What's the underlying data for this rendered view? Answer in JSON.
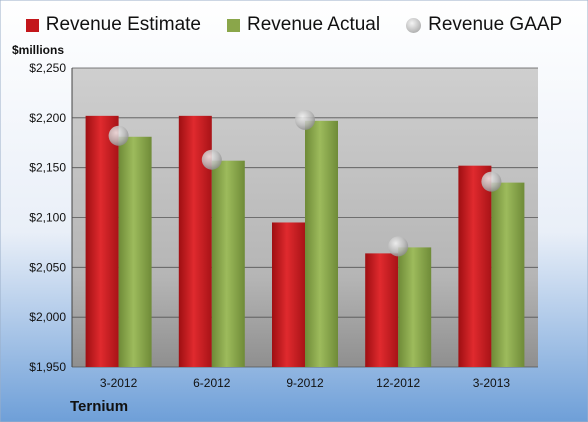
{
  "legend": {
    "estimate": "Revenue Estimate",
    "actual": "Revenue Actual",
    "gaap": "Revenue GAAP"
  },
  "unit_label": "$millions",
  "company": "Ternium",
  "colors": {
    "estimate": "#c3161b",
    "actual": "#8aa64a",
    "gaap": "#b8b8b8",
    "background_top": "#ffffff",
    "background_bottom": "#6e9fd8"
  },
  "chart_data": {
    "type": "bar",
    "categories": [
      "3-2012",
      "6-2012",
      "9-2012",
      "12-2012",
      "3-2013"
    ],
    "series": [
      {
        "name": "Revenue Estimate",
        "values": [
          2202,
          2202,
          2095,
          2064,
          2152
        ]
      },
      {
        "name": "Revenue Actual",
        "values": [
          2181,
          2157,
          2197,
          2070,
          2135
        ]
      },
      {
        "name": "Revenue GAAP",
        "values": [
          2182,
          2158,
          2198,
          2071,
          2136
        ],
        "marker": "circle"
      }
    ],
    "ylim": [
      1950,
      2250
    ],
    "yticks": [
      "$1,950",
      "$2,000",
      "$2,050",
      "$2,100",
      "$2,150",
      "$2,200",
      "$2,250"
    ],
    "grid": true,
    "legend_position": "top"
  }
}
